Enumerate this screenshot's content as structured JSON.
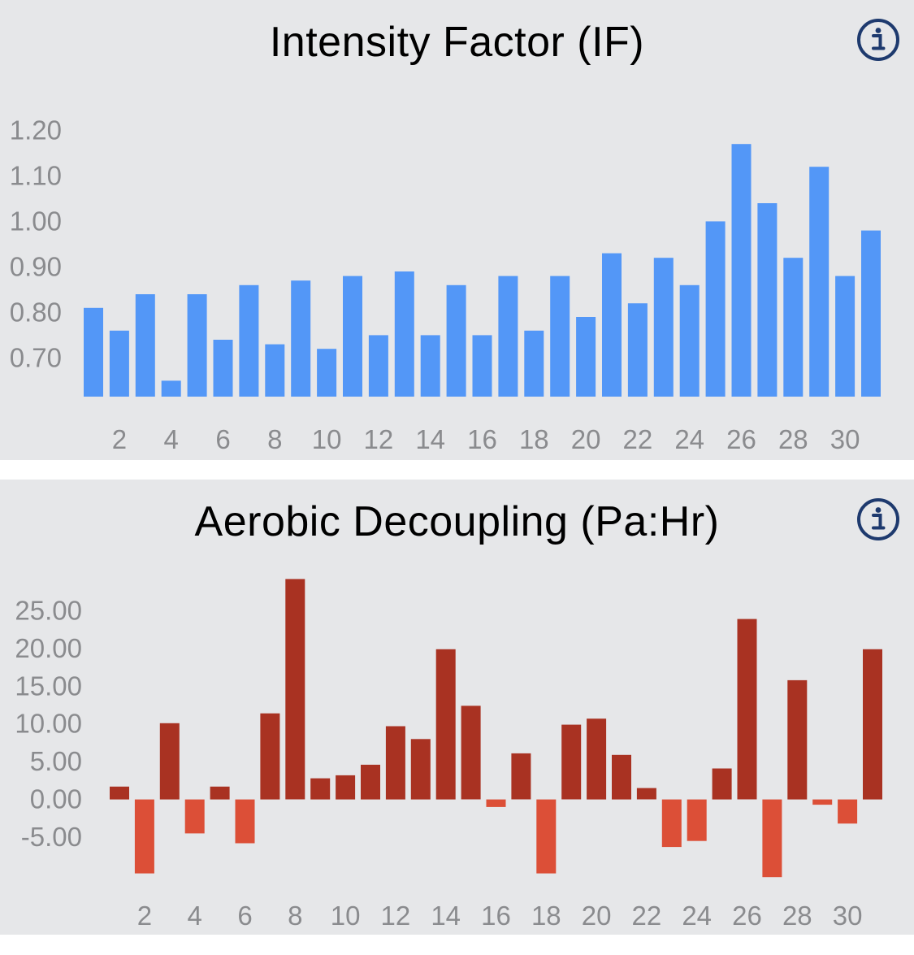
{
  "charts": [
    {
      "title": "Intensity Factor (IF)",
      "info_icon": "info-icon",
      "color": "#5397f7"
    },
    {
      "title": "Aerobic Decoupling (Pa:Hr)",
      "info_icon": "info-icon",
      "positive_color": "#a93222",
      "negative_color": "#dc4f37"
    }
  ],
  "chart_data": [
    {
      "type": "bar",
      "title": "Intensity Factor (IF)",
      "xlabel": "",
      "ylabel": "",
      "x": [
        1,
        2,
        3,
        4,
        5,
        6,
        7,
        8,
        9,
        10,
        11,
        12,
        13,
        14,
        15,
        16,
        17,
        18,
        19,
        20,
        21,
        22,
        23,
        24,
        25,
        26,
        27,
        28,
        29,
        30,
        31
      ],
      "x_tick_labels": [
        "2",
        "4",
        "6",
        "8",
        "10",
        "12",
        "14",
        "16",
        "18",
        "20",
        "22",
        "24",
        "26",
        "28",
        "30"
      ],
      "y_tick_labels": [
        "1.20",
        "1.10",
        "1.00",
        "0.90",
        "0.80",
        "0.70"
      ],
      "values": [
        0.81,
        0.76,
        0.84,
        0.65,
        0.84,
        0.74,
        0.86,
        0.73,
        0.87,
        0.72,
        0.88,
        0.75,
        0.89,
        0.75,
        0.86,
        0.75,
        0.88,
        0.76,
        0.88,
        0.79,
        0.93,
        0.82,
        0.92,
        0.86,
        1.0,
        1.17,
        1.04,
        0.92,
        1.12,
        0.88,
        0.98
      ],
      "ylim": [
        0.615,
        1.24
      ],
      "grid": false,
      "legend": "none"
    },
    {
      "type": "bar",
      "title": "Aerobic Decoupling (Pa:Hr)",
      "xlabel": "",
      "ylabel": "",
      "x": [
        1,
        2,
        3,
        4,
        5,
        6,
        7,
        8,
        9,
        10,
        11,
        12,
        13,
        14,
        15,
        16,
        17,
        18,
        19,
        20,
        21,
        22,
        23,
        24,
        25,
        26,
        27,
        28,
        29,
        30,
        31
      ],
      "x_tick_labels": [
        "2",
        "4",
        "6",
        "8",
        "10",
        "12",
        "14",
        "16",
        "18",
        "20",
        "22",
        "24",
        "26",
        "28",
        "30"
      ],
      "y_tick_labels": [
        "25.00",
        "20.00",
        "15.00",
        "10.00",
        "5.00",
        "0.00",
        "-5.00"
      ],
      "values": [
        1.7,
        -9.8,
        10.1,
        -4.5,
        1.7,
        -5.8,
        11.4,
        29.2,
        2.8,
        3.2,
        4.6,
        9.7,
        8.0,
        19.9,
        12.4,
        -1.0,
        6.1,
        -9.8,
        9.9,
        10.7,
        5.9,
        1.5,
        -6.3,
        -5.5,
        4.1,
        23.9,
        -10.3,
        15.8,
        -0.7,
        -3.2,
        19.9
      ],
      "ylim": [
        -12,
        30
      ],
      "grid": false,
      "legend": "none"
    }
  ]
}
